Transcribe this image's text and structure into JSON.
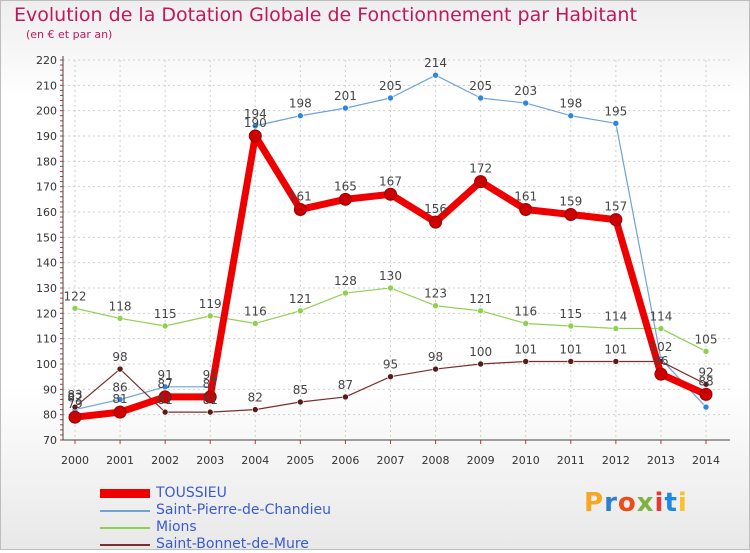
{
  "title": "Evolution de la Dotation Globale de Fonctionnement par Habitant",
  "subtitle": "(en € et par an)",
  "logo": {
    "text": "Proxiti",
    "colors": [
      "#f5a623",
      "#2e7dd1",
      "#e94e1b",
      "#7cb342",
      "#e53935",
      "#1e88e5",
      "#fbc02d"
    ]
  },
  "chart_data": {
    "type": "line",
    "title": "Evolution de la Dotation Globale de Fonctionnement par Habitant",
    "ylabel": "(en € et par an)",
    "xlabel": "",
    "categories": [
      "2000",
      "2001",
      "2002",
      "2003",
      "2004",
      "2005",
      "2006",
      "2007",
      "2008",
      "2009",
      "2010",
      "2011",
      "2012",
      "2013",
      "2014"
    ],
    "ylim": [
      70,
      220
    ],
    "yticks": [
      70,
      80,
      90,
      100,
      110,
      120,
      130,
      140,
      150,
      160,
      170,
      180,
      190,
      200,
      210,
      220
    ],
    "grid": true,
    "series": [
      {
        "name": "Saint-Pierre-de-Chandieu",
        "color": "#6fa3d6",
        "marker": "#2e86de",
        "width": 1.2,
        "values": [
          82,
          86,
          91,
          91,
          194,
          198,
          201,
          205,
          214,
          205,
          203,
          198,
          195,
          102,
          83
        ],
        "labels": [
          "82",
          "86",
          "91",
          "91",
          "194",
          "198",
          "201",
          "205",
          "214",
          "205",
          "203",
          "198",
          "195",
          "102",
          ""
        ]
      },
      {
        "name": "Mions",
        "color": "#8fd14f",
        "marker": "#8fd14f",
        "width": 1.2,
        "values": [
          122,
          118,
          115,
          119,
          116,
          121,
          128,
          130,
          123,
          121,
          116,
          115,
          114,
          114,
          105
        ],
        "labels": [
          "122",
          "118",
          "115",
          "119",
          "116",
          "121",
          "128",
          "130",
          "123",
          "121",
          "116",
          "115",
          "114",
          "114",
          "105"
        ]
      },
      {
        "name": "Saint-Bonnet-de-Mure",
        "color": "#7a2e2e",
        "marker": "#5a1a1a",
        "width": 1.2,
        "values": [
          83,
          98,
          81,
          81,
          82,
          85,
          87,
          95,
          98,
          100,
          101,
          101,
          101,
          101,
          92
        ],
        "labels": [
          "83",
          "98",
          "81",
          "81",
          "82",
          "85",
          "87",
          "95",
          "98",
          "100",
          "101",
          "101",
          "101",
          "",
          "92"
        ]
      },
      {
        "name": "TOUSSIEU",
        "color": "#ee0000",
        "marker": "#cc0000",
        "width": 7,
        "values": [
          79,
          81,
          87,
          87,
          190,
          161,
          165,
          167,
          156,
          172,
          161,
          159,
          157,
          96,
          88
        ],
        "labels": [
          "79",
          "81",
          "87",
          "87",
          "190",
          "161",
          "165",
          "167",
          "156",
          "172",
          "161",
          "159",
          "157",
          "96",
          "88"
        ]
      }
    ],
    "legend": [
      "TOUSSIEU",
      "Saint-Pierre-de-Chandieu",
      "Mions",
      "Saint-Bonnet-de-Mure"
    ]
  }
}
